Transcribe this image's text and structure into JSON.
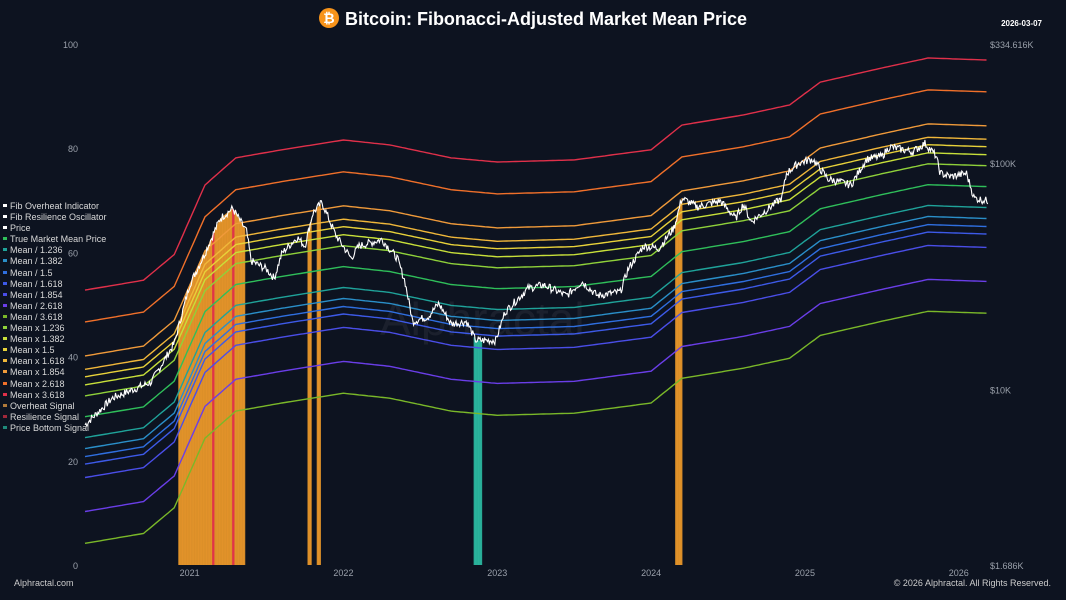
{
  "title": "Bitcoin: Fibonacci-Adjusted Market Mean Price",
  "date": "2026-03-07",
  "watermark": "Alphractal",
  "footer_left": "Alphractal.com",
  "footer_right": "© 2026 Alphractal. All Rights Reserved.",
  "colors": {
    "background": "#0d1320",
    "price": "#ffffff",
    "overheat": "#e8962a",
    "resilience": "#e0304a",
    "bottom": "#2bb8a0"
  },
  "legend": [
    {
      "label": "Fib Overheat Indicator",
      "color": "#ffffff"
    },
    {
      "label": "Fib Resilience Oscillator",
      "color": "#ffffff"
    },
    {
      "label": "Price",
      "color": "#ffffff"
    },
    {
      "label": "True Market Mean Price",
      "color": "#2fbf5a"
    },
    {
      "label": "Mean / 1.236",
      "color": "#1fa39a"
    },
    {
      "label": "Mean / 1.382",
      "color": "#2a8fc9"
    },
    {
      "label": "Mean / 1.5",
      "color": "#2f6fe0"
    },
    {
      "label": "Mean / 1.618",
      "color": "#3d5ae8"
    },
    {
      "label": "Mean / 1.854",
      "color": "#4a4ee8"
    },
    {
      "label": "Mean / 2.618",
      "color": "#6a3ee8"
    },
    {
      "label": "Mean / 3.618",
      "color": "#7ab829"
    },
    {
      "label": "Mean x 1.236",
      "color": "#8fd13a"
    },
    {
      "label": "Mean x 1.382",
      "color": "#c8e03a"
    },
    {
      "label": "Mean x 1.5",
      "color": "#e8d23a"
    },
    {
      "label": "Mean x 1.618",
      "color": "#f0b73a"
    },
    {
      "label": "Mean x 1.854",
      "color": "#f09a3a"
    },
    {
      "label": "Mean x 2.618",
      "color": "#f0702a"
    },
    {
      "label": "Mean x 3.618",
      "color": "#e0304a"
    },
    {
      "label": "Overheat Signal",
      "color": "#b07a3a"
    },
    {
      "label": "Resilience Signal",
      "color": "#a0283a"
    },
    {
      "label": "Price Bottom Signal",
      "color": "#1f8a7a"
    }
  ],
  "chart_data": {
    "type": "line",
    "title": "Bitcoin: Fibonacci-Adjusted Market Mean Price",
    "x_range": [
      2020.32,
      2026.19
    ],
    "x_ticks": [
      "2021",
      "2022",
      "2023",
      "2024",
      "2025",
      "2026"
    ],
    "y_left": {
      "range": [
        0,
        100
      ],
      "ticks": [
        "0",
        "20",
        "40",
        "60",
        "80",
        "100"
      ]
    },
    "y_right": {
      "scale": "log",
      "range": [
        1686,
        334616
      ],
      "ticks": [
        {
          "label": "$1.686K",
          "value": 1686
        },
        {
          "label": "$10K",
          "value": 10000
        },
        {
          "label": "$100K",
          "value": 100000
        },
        {
          "label": "$334.616K",
          "value": 334616
        }
      ]
    },
    "grid": false,
    "legend_position": "left",
    "multipliers": [
      {
        "name": "Mean x 3.618",
        "k": 3.618,
        "color": "#e0304a"
      },
      {
        "name": "Mean x 2.618",
        "k": 2.618,
        "color": "#f0702a"
      },
      {
        "name": "Mean x 1.854",
        "k": 1.854,
        "color": "#f09a3a"
      },
      {
        "name": "Mean x 1.618",
        "k": 1.618,
        "color": "#f0b73a"
      },
      {
        "name": "Mean x 1.5",
        "k": 1.5,
        "color": "#e8d23a"
      },
      {
        "name": "Mean x 1.382",
        "k": 1.382,
        "color": "#c8e03a"
      },
      {
        "name": "Mean x 1.236",
        "k": 1.236,
        "color": "#8fd13a"
      },
      {
        "name": "True Market Mean Price",
        "k": 1,
        "color": "#2fbf5a"
      },
      {
        "name": "Mean / 1.236",
        "k": 0.809,
        "color": "#1fa39a"
      },
      {
        "name": "Mean / 1.382",
        "k": 0.7236,
        "color": "#2a8fc9"
      },
      {
        "name": "Mean / 1.5",
        "k": 0.6667,
        "color": "#2f6fe0"
      },
      {
        "name": "Mean / 1.618",
        "k": 0.618,
        "color": "#3d5ae8"
      },
      {
        "name": "Mean / 1.854",
        "k": 0.5394,
        "color": "#4a4ee8"
      },
      {
        "name": "Mean / 2.618",
        "k": 0.382,
        "color": "#6a3ee8"
      },
      {
        "name": "Mean / 3.618",
        "k": 0.2764,
        "color": "#7ab829"
      }
    ],
    "mean": [
      [
        2020.32,
        7600
      ],
      [
        2020.7,
        8400
      ],
      [
        2020.9,
        10900
      ],
      [
        2021.1,
        22100
      ],
      [
        2021.3,
        29100
      ],
      [
        2021.6,
        31600
      ],
      [
        2022.0,
        34900
      ],
      [
        2022.3,
        33200
      ],
      [
        2022.7,
        29100
      ],
      [
        2023.0,
        27900
      ],
      [
        2023.5,
        28500
      ],
      [
        2024.0,
        31600
      ],
      [
        2024.2,
        40600
      ],
      [
        2024.6,
        45000
      ],
      [
        2024.9,
        49800
      ],
      [
        2025.1,
        62800
      ],
      [
        2025.5,
        72500
      ],
      [
        2025.8,
        80200
      ],
      [
        2026.19,
        78600
      ]
    ],
    "price": [
      [
        2020.32,
        7000
      ],
      [
        2020.5,
        9200
      ],
      [
        2020.75,
        10800
      ],
      [
        2020.9,
        16000
      ],
      [
        2021.0,
        29000
      ],
      [
        2021.1,
        40000
      ],
      [
        2021.15,
        48000
      ],
      [
        2021.2,
        57000
      ],
      [
        2021.28,
        63000
      ],
      [
        2021.37,
        50000
      ],
      [
        2021.4,
        37000
      ],
      [
        2021.5,
        34000
      ],
      [
        2021.55,
        31000
      ],
      [
        2021.6,
        40000
      ],
      [
        2021.7,
        47000
      ],
      [
        2021.75,
        43000
      ],
      [
        2021.8,
        60000
      ],
      [
        2021.86,
        67000
      ],
      [
        2021.95,
        48000
      ],
      [
        2022.05,
        38000
      ],
      [
        2022.1,
        43000
      ],
      [
        2022.25,
        46000
      ],
      [
        2022.35,
        38000
      ],
      [
        2022.4,
        30000
      ],
      [
        2022.45,
        20000
      ],
      [
        2022.55,
        21000
      ],
      [
        2022.62,
        24000
      ],
      [
        2022.7,
        19500
      ],
      [
        2022.8,
        20000
      ],
      [
        2022.86,
        16500
      ],
      [
        2022.99,
        16500
      ],
      [
        2023.05,
        22000
      ],
      [
        2023.2,
        28000
      ],
      [
        2023.3,
        29000
      ],
      [
        2023.45,
        26000
      ],
      [
        2023.55,
        30000
      ],
      [
        2023.65,
        26000
      ],
      [
        2023.8,
        27000
      ],
      [
        2023.85,
        34000
      ],
      [
        2023.95,
        43000
      ],
      [
        2024.05,
        42000
      ],
      [
        2024.15,
        52000
      ],
      [
        2024.2,
        70000
      ],
      [
        2024.3,
        64000
      ],
      [
        2024.45,
        68000
      ],
      [
        2024.55,
        57000
      ],
      [
        2024.6,
        66000
      ],
      [
        2024.65,
        55000
      ],
      [
        2024.75,
        62000
      ],
      [
        2024.85,
        70000
      ],
      [
        2024.88,
        90000
      ],
      [
        2024.96,
        100000
      ],
      [
        2025.05,
        104000
      ],
      [
        2025.15,
        85000
      ],
      [
        2025.3,
        80000
      ],
      [
        2025.4,
        104000
      ],
      [
        2025.5,
        107000
      ],
      [
        2025.55,
        118000
      ],
      [
        2025.7,
        112000
      ],
      [
        2025.78,
        122000
      ],
      [
        2025.85,
        108000
      ],
      [
        2025.88,
        90000
      ],
      [
        2025.95,
        87000
      ],
      [
        2026.05,
        90000
      ],
      [
        2026.1,
        70000
      ],
      [
        2026.19,
        68000
      ]
    ],
    "overheat_signals": [
      [
        2020.93,
        2021.36
      ],
      [
        2021.77,
        2021.79
      ],
      [
        2021.83,
        2021.85
      ],
      [
        2024.16,
        2024.2
      ]
    ],
    "resilience_signals": [
      [
        2021.15,
        2021.16
      ],
      [
        2021.28,
        2021.29
      ]
    ],
    "bottom_signals": [
      [
        2022.85,
        2022.9
      ]
    ]
  }
}
